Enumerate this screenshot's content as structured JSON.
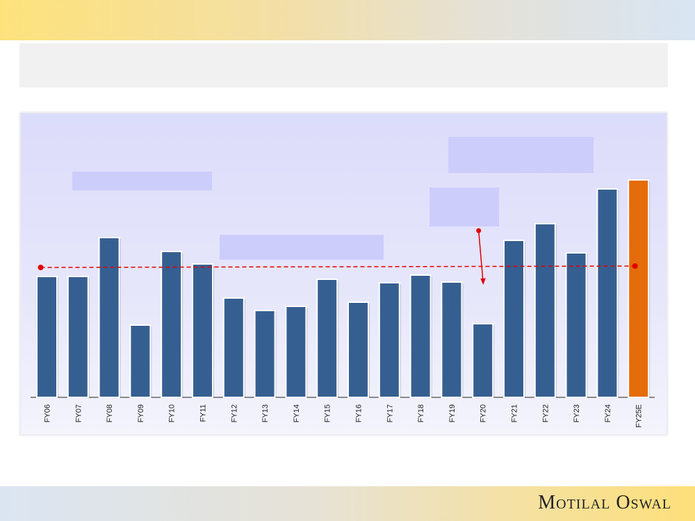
{
  "brand": {
    "name": "Motilal Oswal"
  },
  "colors": {
    "bar": "#365f91",
    "bar_highlight": "#e46c0a",
    "reference_line": "#e00000"
  },
  "chart_data": {
    "type": "bar",
    "title": "",
    "xlabel": "",
    "ylabel": "",
    "categories": [
      "FY06",
      "FY07",
      "FY08",
      "FY09",
      "FY10",
      "FY11",
      "FY12",
      "FY13",
      "FY14",
      "FY15",
      "FY16",
      "FY17",
      "FY18",
      "FY19",
      "FY20",
      "FY21",
      "FY22",
      "FY23",
      "FY24",
      "FY25E"
    ],
    "values": [
      174,
      174,
      230,
      104,
      210,
      192,
      143,
      125,
      131,
      170,
      137,
      165,
      176,
      166,
      106,
      226,
      250,
      208,
      300,
      313
    ],
    "highlight_index": 19,
    "ylim": [
      0,
      330
    ],
    "reference_line": {
      "value": 187
    },
    "arrow": {
      "from_category": "FY20"
    },
    "grid": false,
    "legend": "none"
  }
}
